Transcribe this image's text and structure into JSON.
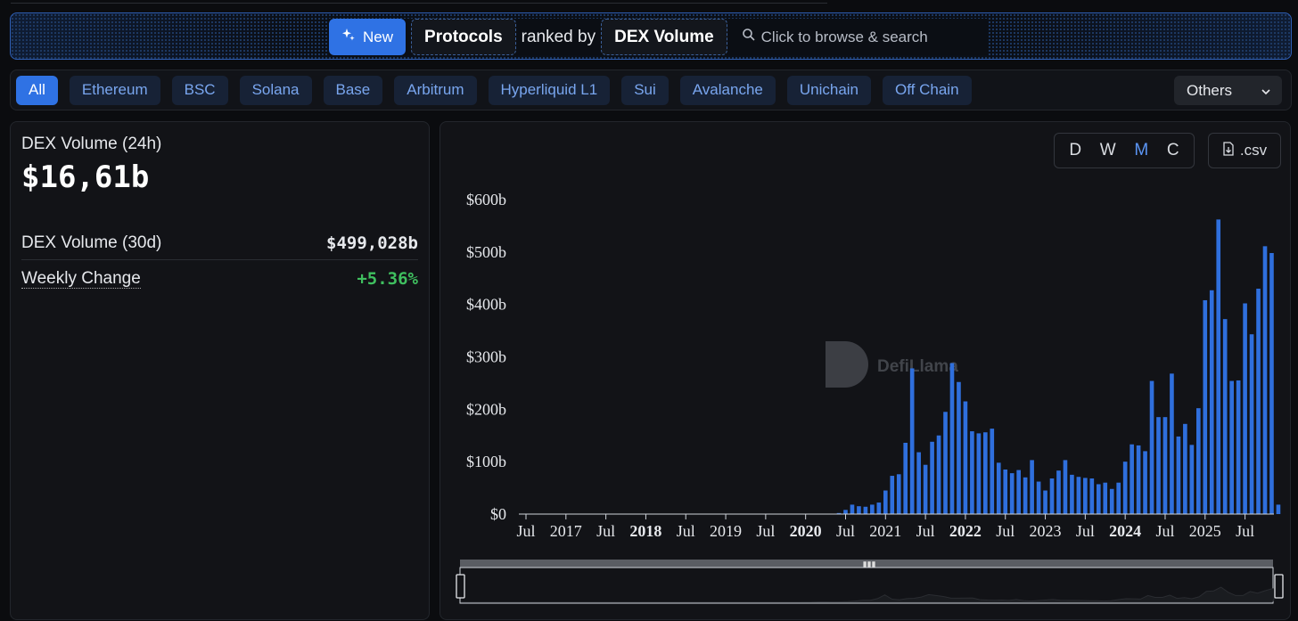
{
  "query": {
    "new_label": "New",
    "entity": "Protocols",
    "ranked_by_text": "ranked by",
    "metric": "DEX Volume",
    "search_placeholder": "Click to browse & search"
  },
  "chains": {
    "tabs": [
      "All",
      "Ethereum",
      "BSC",
      "Solana",
      "Base",
      "Arbitrum",
      "Hyperliquid L1",
      "Sui",
      "Avalanche",
      "Unichain",
      "Off Chain"
    ],
    "active": "All",
    "others_label": "Others"
  },
  "stats": {
    "volume_24h_label": "DEX Volume (24h)",
    "volume_24h_value": "$16,61b",
    "volume_30d_label": "DEX Volume (30d)",
    "volume_30d_value": "$499,028b",
    "weekly_change_label": "Weekly Change",
    "weekly_change_value": "+5.36%"
  },
  "controls": {
    "granularity": [
      "D",
      "W",
      "M",
      "C"
    ],
    "selected_granularity": "M",
    "csv_label": ".csv"
  },
  "watermark": "DefiLlama",
  "colors": {
    "bar": "#2f6fdd",
    "accent": "#2f72e4",
    "positive": "#3fbf5f"
  },
  "chart_data": {
    "type": "bar",
    "title": "",
    "xlabel": "",
    "ylabel": "",
    "ylim": [
      0,
      600
    ],
    "y_unit": "b",
    "y_ticks": [
      "$0",
      "$100b",
      "$200b",
      "$300b",
      "$400b",
      "$500b",
      "$600b"
    ],
    "x_ticks": [
      {
        "label": "Jul",
        "bold": false
      },
      {
        "label": "2017",
        "bold": false
      },
      {
        "label": "Jul",
        "bold": false
      },
      {
        "label": "2018",
        "bold": true
      },
      {
        "label": "Jul",
        "bold": false
      },
      {
        "label": "2019",
        "bold": false
      },
      {
        "label": "Jul",
        "bold": false
      },
      {
        "label": "2020",
        "bold": true
      },
      {
        "label": "Jul",
        "bold": false
      },
      {
        "label": "2021",
        "bold": false
      },
      {
        "label": "Jul",
        "bold": false
      },
      {
        "label": "2022",
        "bold": true
      },
      {
        "label": "Jul",
        "bold": false
      },
      {
        "label": "2023",
        "bold": false
      },
      {
        "label": "Jul",
        "bold": false
      },
      {
        "label": "2024",
        "bold": true
      },
      {
        "label": "Jul",
        "bold": false
      },
      {
        "label": "2025",
        "bold": false
      },
      {
        "label": "Jul",
        "bold": false
      }
    ],
    "x_start": "2016-07",
    "x_end": "2025-10",
    "grid": false,
    "legend": "none",
    "series": [
      {
        "points": [
          [
            "2020-06",
            2
          ],
          [
            "2020-07",
            8
          ],
          [
            "2020-08",
            18
          ],
          [
            "2020-09",
            15
          ],
          [
            "2020-10",
            14
          ],
          [
            "2020-11",
            18
          ],
          [
            "2020-12",
            22
          ],
          [
            "2021-01",
            45
          ],
          [
            "2021-02",
            73
          ],
          [
            "2021-03",
            76
          ],
          [
            "2021-04",
            136
          ],
          [
            "2021-05",
            278
          ],
          [
            "2021-06",
            118
          ],
          [
            "2021-07",
            94
          ],
          [
            "2021-08",
            138
          ],
          [
            "2021-09",
            150
          ],
          [
            "2021-10",
            195
          ],
          [
            "2021-11",
            288
          ],
          [
            "2021-12",
            252
          ],
          [
            "2022-01",
            215
          ],
          [
            "2022-02",
            158
          ],
          [
            "2022-03",
            154
          ],
          [
            "2022-04",
            156
          ],
          [
            "2022-05",
            163
          ],
          [
            "2022-06",
            98
          ],
          [
            "2022-07",
            85
          ],
          [
            "2022-08",
            78
          ],
          [
            "2022-09",
            84
          ],
          [
            "2022-10",
            70
          ],
          [
            "2022-11",
            103
          ],
          [
            "2022-12",
            62
          ],
          [
            "2023-01",
            45
          ],
          [
            "2023-02",
            68
          ],
          [
            "2023-03",
            83
          ],
          [
            "2023-04",
            103
          ],
          [
            "2023-05",
            75
          ],
          [
            "2023-06",
            71
          ],
          [
            "2023-07",
            69
          ],
          [
            "2023-08",
            68
          ],
          [
            "2023-09",
            57
          ],
          [
            "2023-10",
            60
          ],
          [
            "2023-11",
            48
          ],
          [
            "2023-12",
            60
          ],
          [
            "2024-01",
            100
          ],
          [
            "2024-02",
            133
          ],
          [
            "2024-03",
            131
          ],
          [
            "2024-04",
            120
          ],
          [
            "2024-05",
            254
          ],
          [
            "2024-06",
            185
          ],
          [
            "2024-07",
            185
          ],
          [
            "2024-08",
            268
          ],
          [
            "2024-09",
            148
          ],
          [
            "2024-10",
            172
          ],
          [
            "2024-11",
            132
          ],
          [
            "2024-12",
            202
          ],
          [
            "2025-01",
            408
          ],
          [
            "2025-02",
            427
          ],
          [
            "2025-03",
            562
          ],
          [
            "2025-04",
            372
          ],
          [
            "2025-05",
            254
          ],
          [
            "2025-06",
            255
          ],
          [
            "2025-07",
            402
          ],
          [
            "2025-08",
            343
          ],
          [
            "2025-09",
            430
          ],
          [
            "2025-10",
            511
          ],
          [
            "2025-11",
            498
          ],
          [
            "2025-12",
            18
          ]
        ]
      }
    ]
  }
}
